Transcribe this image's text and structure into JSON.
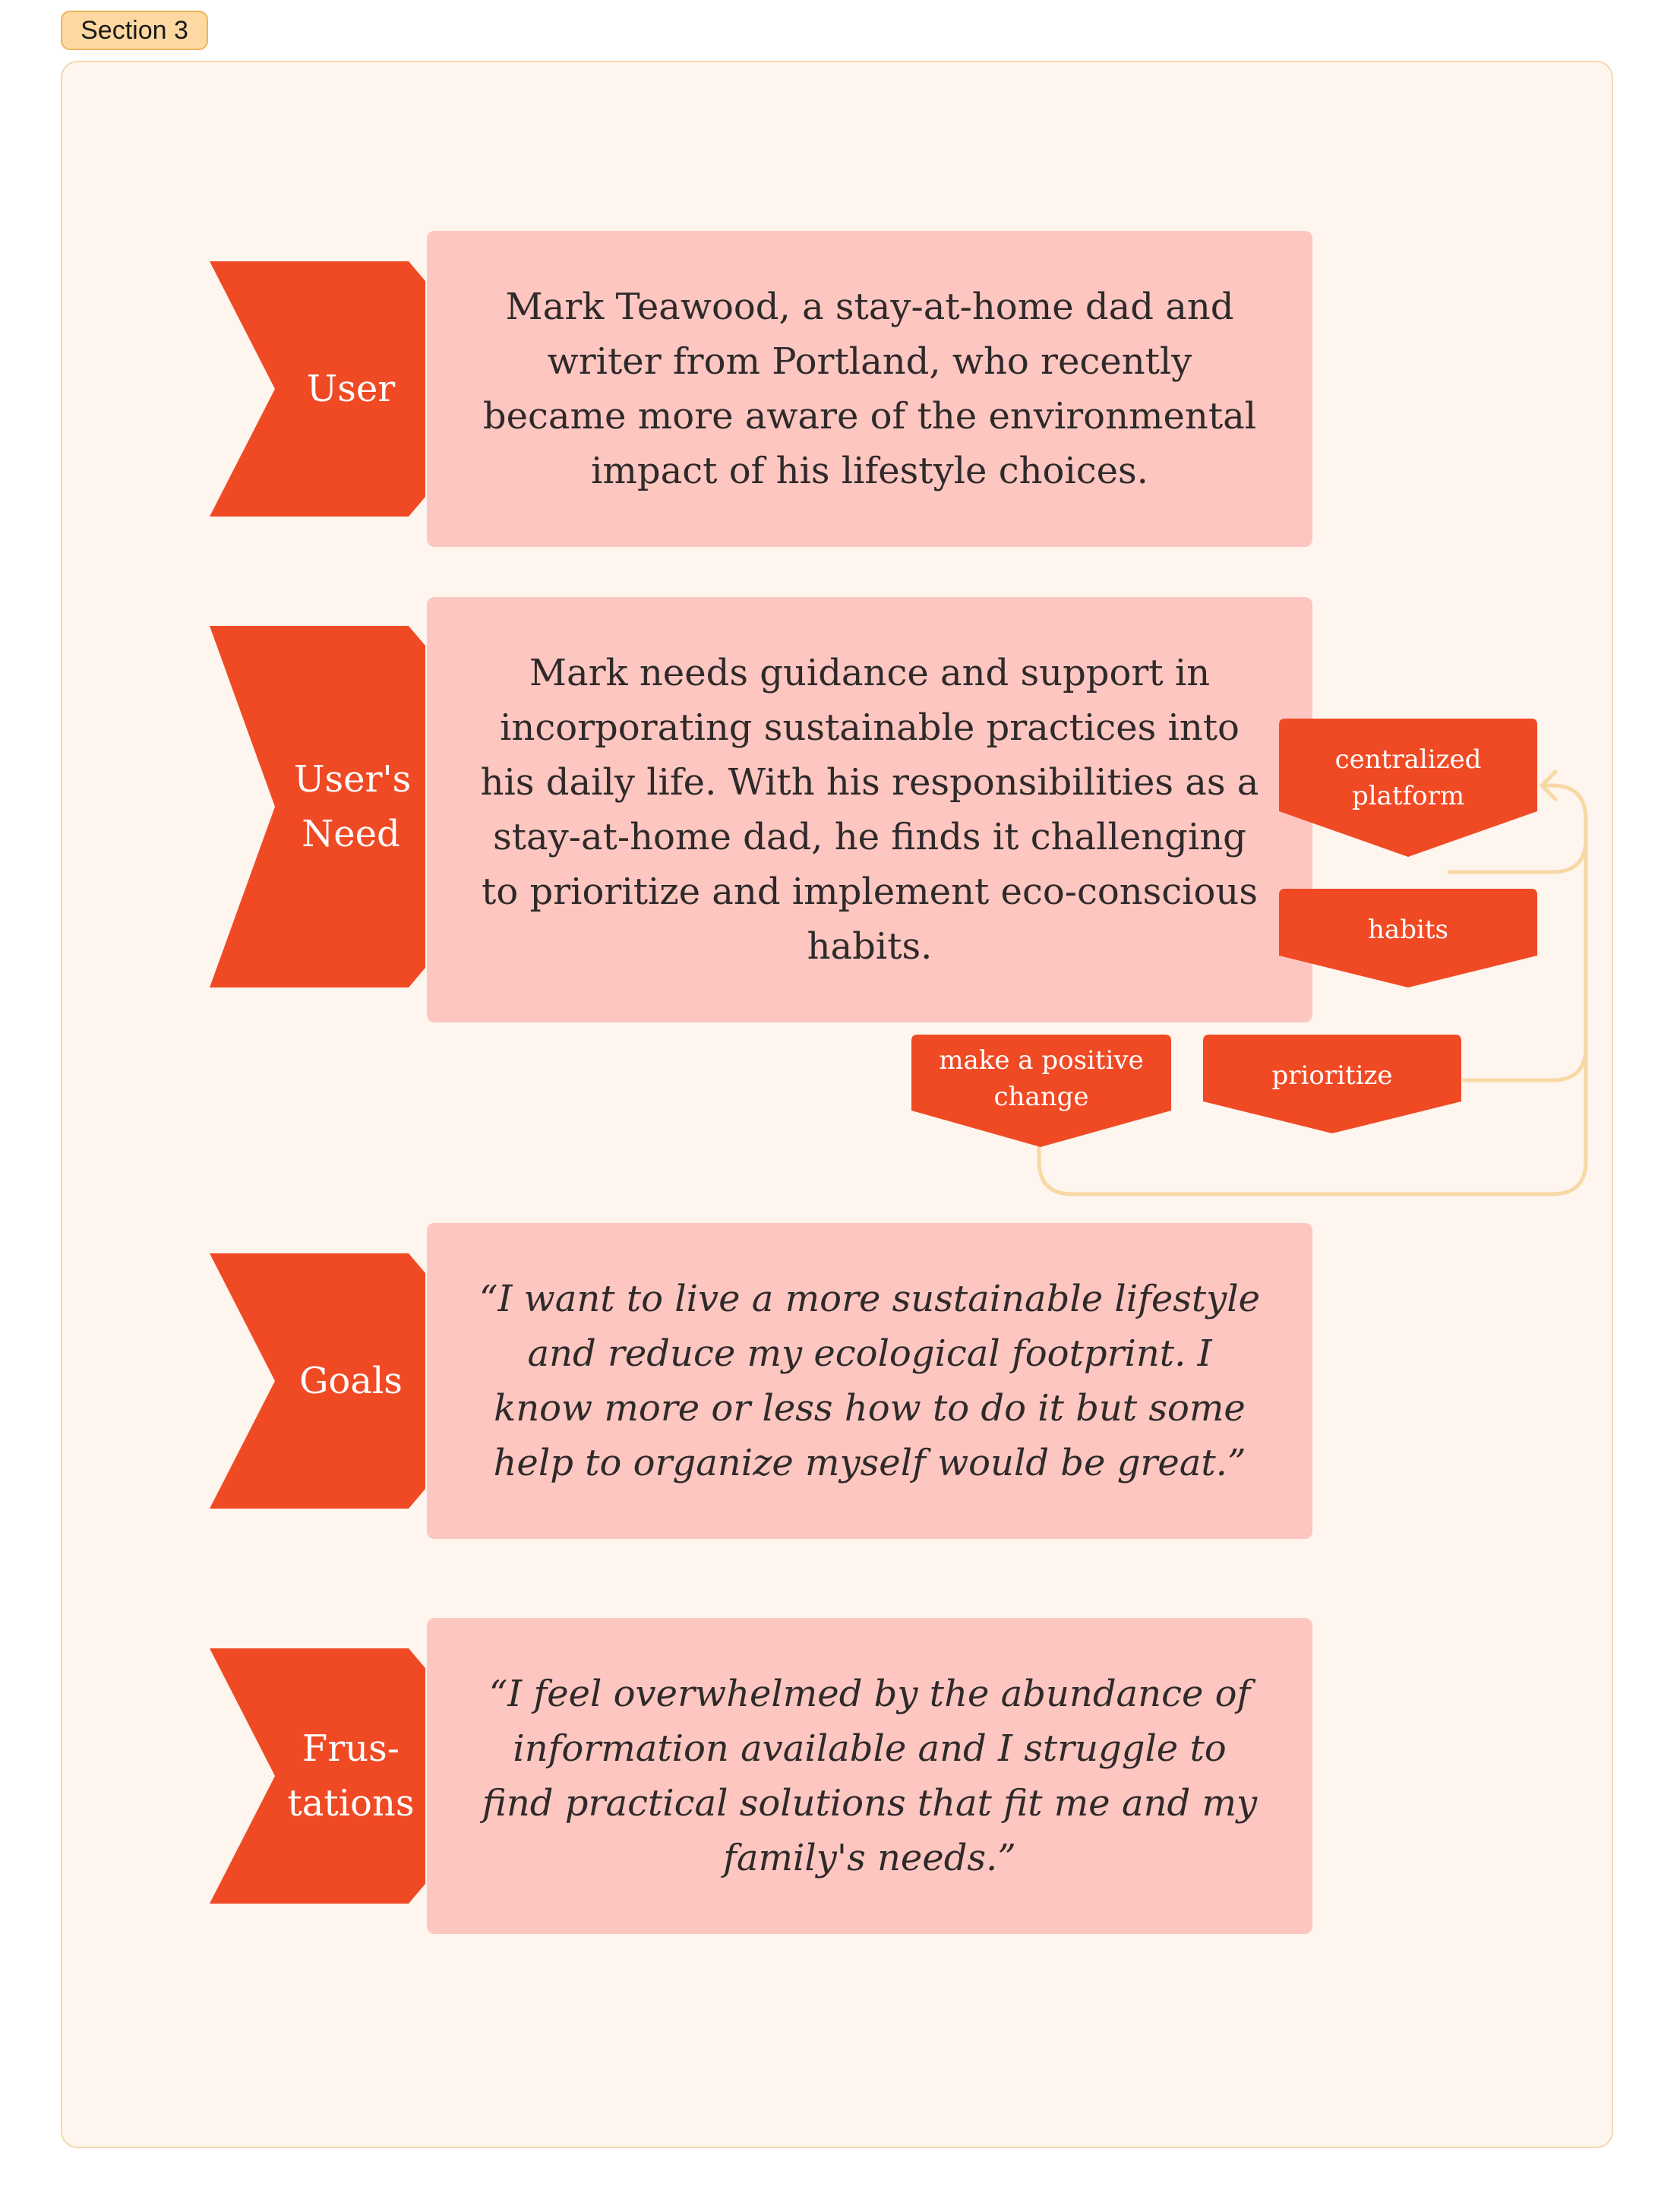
{
  "section": {
    "label": "Section 3"
  },
  "colors": {
    "accent": "#f04a25",
    "card": "#fdc6c0",
    "frame": "#fdf5ee",
    "connector": "#f8d8a4"
  },
  "rows": [
    {
      "label": "User",
      "text": "Mark Teawood, a stay-at-home dad and writer from Portland, who recently became more aware of the environmental impact of his lifestyle choices."
    },
    {
      "label": "User's Need",
      "text": "Mark needs guidance and support in incorporating sustainable practices into his daily life. With his responsibilities as a stay-at-home dad, he finds it challenging to prioritize and implement eco-conscious habits."
    },
    {
      "label": "Goals",
      "text": "“I want to live a more sustainable lifestyle and reduce my ecological footprint. I know more or less how to do it but some help to organize myself would be great.”"
    },
    {
      "label": "Frus-tations",
      "text": "“I feel overwhelmed by the abundance of information available and I struggle to find practical solutions that fit me and my family's needs.”"
    }
  ],
  "tags": {
    "centralized_platform": "centralized platform",
    "habits": "habits",
    "prioritize": "prioritize",
    "make_positive_change": "make a positive change"
  }
}
